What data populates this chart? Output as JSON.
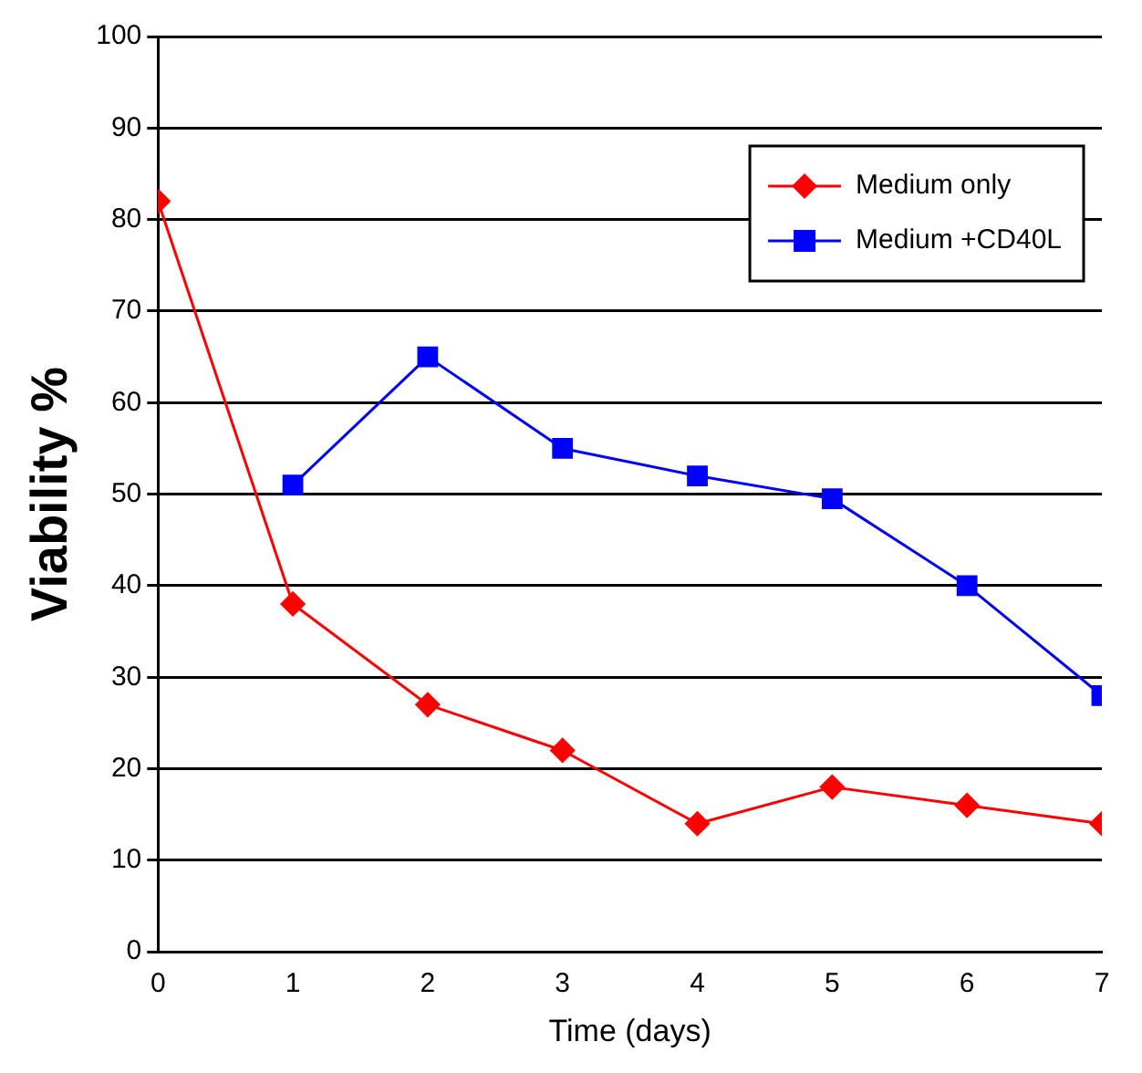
{
  "chart_data": {
    "type": "line",
    "xlabel": "Time (days)",
    "ylabel": "Viability %",
    "x": [
      0,
      1,
      2,
      3,
      4,
      5,
      6,
      7
    ],
    "series": [
      {
        "name": "Medium only",
        "color": "#ff0000",
        "marker": "diamond",
        "values": [
          82,
          38,
          27,
          22,
          14,
          18,
          16,
          14
        ]
      },
      {
        "name": "Medium +CD40L",
        "color": "#0000ff",
        "marker": "square",
        "values": [
          null,
          51,
          65,
          55,
          52,
          49.5,
          40,
          28
        ]
      }
    ],
    "xlim": [
      0,
      7
    ],
    "xticks": [
      0,
      1,
      2,
      3,
      4,
      5,
      6,
      7
    ],
    "ylim": [
      0,
      100
    ],
    "yticks": [
      0,
      10,
      20,
      30,
      40,
      50,
      60,
      70,
      80,
      90,
      100
    ],
    "grid": "y",
    "legend": "top right",
    "line_style": "solid"
  }
}
